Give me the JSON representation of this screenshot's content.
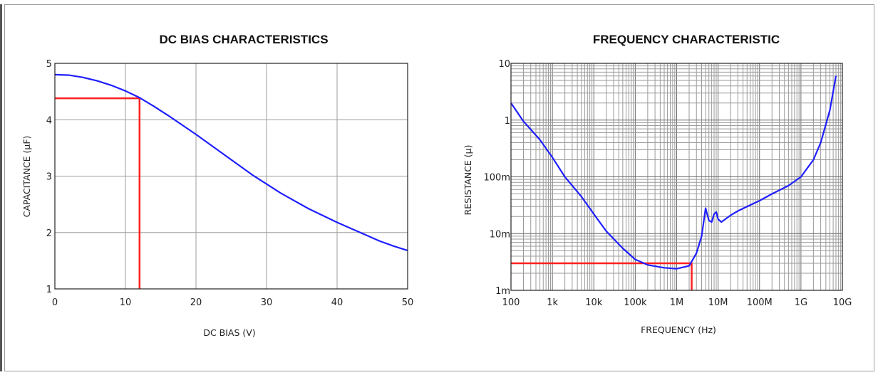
{
  "chart_data": [
    {
      "type": "line",
      "title": "DC BIAS CHARACTERISTICS",
      "xlabel": "DC BIAS (V)",
      "ylabel": "CAPACITANCE (µF)",
      "xlim": [
        0,
        50
      ],
      "ylim": [
        1,
        5
      ],
      "xticks": [
        "0",
        "10",
        "20",
        "30",
        "40",
        "50"
      ],
      "yticks": [
        "1",
        "2",
        "3",
        "4",
        "5"
      ],
      "grid": true,
      "series": [
        {
          "color": "#1f1fff",
          "x": [
            0,
            2,
            4,
            6,
            8,
            10,
            12,
            14,
            16,
            18,
            20,
            22,
            24,
            26,
            28,
            30,
            32,
            34,
            36,
            38,
            40,
            42,
            44,
            46,
            48,
            50
          ],
          "y": [
            4.8,
            4.79,
            4.75,
            4.69,
            4.61,
            4.51,
            4.39,
            4.24,
            4.08,
            3.91,
            3.74,
            3.56,
            3.38,
            3.2,
            3.02,
            2.86,
            2.7,
            2.56,
            2.42,
            2.3,
            2.18,
            2.07,
            1.96,
            1.85,
            1.76,
            1.68
          ]
        }
      ],
      "markers": [
        {
          "color": "#ff1f1f",
          "x": 12,
          "y": 4.38
        }
      ]
    },
    {
      "type": "line",
      "title": "FREQUENCY CHARACTERISTIC",
      "xlabel": "FREQUENCY (Hz)",
      "ylabel": "RESISTANCE (µ)",
      "xscale": "log",
      "yscale": "log",
      "xlim": [
        100,
        10000000000
      ],
      "ylim": [
        0.001,
        10
      ],
      "xticks": [
        "100",
        "1k",
        "10k",
        "100k",
        "1M",
        "10M",
        "100M",
        "1G",
        "10G"
      ],
      "yticks": [
        "1m",
        "10m",
        "100m",
        "1",
        "10"
      ],
      "grid": true,
      "series": [
        {
          "color": "#1f1fff",
          "x": [
            100,
            200,
            500,
            1000,
            2000,
            5000,
            10000,
            20000,
            50000,
            100000,
            200000,
            500000,
            1000000,
            2000000,
            3000000,
            4000000,
            5000000,
            6000000,
            7000000,
            8000000,
            9000000,
            10000000,
            12000000,
            15000000,
            20000000,
            30000000,
            50000000,
            100000000,
            200000000,
            500000000,
            1000000000,
            2000000000,
            3000000000,
            5000000000,
            7000000000
          ],
          "y": [
            2.0,
            0.95,
            0.45,
            0.22,
            0.1,
            0.045,
            0.022,
            0.011,
            0.0055,
            0.0035,
            0.0028,
            0.0025,
            0.0024,
            0.0027,
            0.0045,
            0.009,
            0.028,
            0.017,
            0.016,
            0.022,
            0.024,
            0.018,
            0.016,
            0.018,
            0.021,
            0.025,
            0.03,
            0.038,
            0.05,
            0.07,
            0.1,
            0.2,
            0.4,
            1.5,
            6.0
          ]
        }
      ],
      "markers": [
        {
          "color": "#ff1f1f",
          "x": 2300000,
          "y": 0.003
        }
      ]
    }
  ]
}
